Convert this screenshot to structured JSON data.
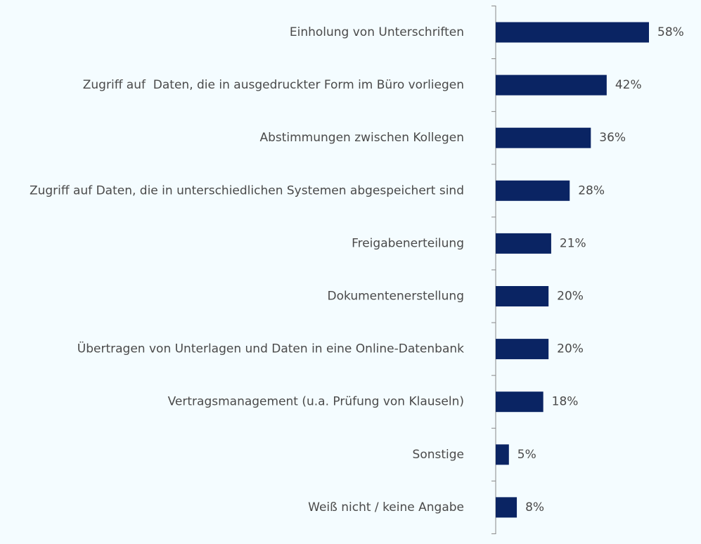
{
  "chart_data": {
    "type": "bar",
    "orientation": "horizontal",
    "categories": [
      "Einholung von Unterschriften",
      "Zugriff auf  Daten, die in ausgedruckter Form im Büro vorliegen",
      "Abstimmungen zwischen Kollegen",
      "Zugriff auf Daten, die in unterschiedlichen Systemen abgespeichert sind",
      "Freigabenerteilung",
      "Dokumentenerstellung",
      "Übertragen von Unterlagen und Daten in eine Online-Datenbank",
      "Vertragsmanagement (u.a. Prüfung von Klauseln)",
      "Sonstige",
      "Weiß nicht / keine Angabe"
    ],
    "values": [
      58,
      42,
      36,
      28,
      21,
      20,
      20,
      18,
      5,
      8
    ],
    "value_labels": [
      "58%",
      "42%",
      "36%",
      "28%",
      "21%",
      "20%",
      "20%",
      "18%",
      "5%",
      "8%"
    ],
    "xlim": [
      0,
      100
    ],
    "grid": false,
    "bar_color": "#0a2463",
    "text_color": "#4a4a4a",
    "axis_color": "#888888",
    "background": "#f4fcff"
  }
}
